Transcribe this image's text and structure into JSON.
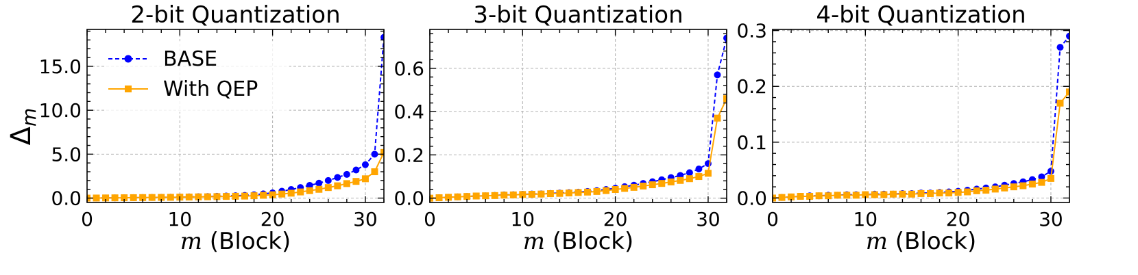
{
  "legend": {
    "location": "upper-left",
    "entries": [
      {
        "label": "BASE",
        "color": "#0000ff",
        "marker": "circle",
        "linestyle": "dashed"
      },
      {
        "label": "With QEP",
        "color": "#ffa500",
        "marker": "square",
        "linestyle": "solid"
      }
    ]
  },
  "y_label": {
    "symbol": "Δ",
    "subscript": "m"
  },
  "chart_data": [
    {
      "type": "line",
      "title": "2-bit Quantization",
      "xlabel_var": "m",
      "xlabel_rest": " (Block)",
      "x": [
        0,
        1,
        2,
        3,
        4,
        5,
        6,
        7,
        8,
        9,
        10,
        11,
        12,
        13,
        14,
        15,
        16,
        17,
        18,
        19,
        20,
        21,
        22,
        23,
        24,
        25,
        26,
        27,
        28,
        29,
        30,
        31,
        32
      ],
      "xlim": [
        0,
        32
      ],
      "ylim": [
        -0.5,
        19.2
      ],
      "xticks": [
        0,
        10,
        20,
        30
      ],
      "yticks": [
        0,
        5,
        10,
        15
      ],
      "ytick_labels": [
        "0.0",
        "5.0",
        "10.0",
        "15.0"
      ],
      "grid": true,
      "series": [
        {
          "name": "BASE",
          "values": [
            0.0,
            0.01,
            0.02,
            0.03,
            0.04,
            0.05,
            0.06,
            0.07,
            0.09,
            0.1,
            0.12,
            0.14,
            0.16,
            0.18,
            0.21,
            0.24,
            0.27,
            0.31,
            0.38,
            0.48,
            0.6,
            0.78,
            0.98,
            1.2,
            1.45,
            1.7,
            2.0,
            2.35,
            2.7,
            3.2,
            3.8,
            5.0,
            18.3
          ]
        },
        {
          "name": "With QEP",
          "values": [
            0.0,
            0.01,
            0.02,
            0.03,
            0.04,
            0.05,
            0.06,
            0.07,
            0.08,
            0.09,
            0.11,
            0.12,
            0.14,
            0.15,
            0.17,
            0.19,
            0.21,
            0.23,
            0.27,
            0.32,
            0.38,
            0.46,
            0.56,
            0.7,
            0.85,
            1.0,
            1.2,
            1.4,
            1.65,
            1.9,
            2.2,
            3.0,
            5.2
          ]
        }
      ]
    },
    {
      "type": "line",
      "title": "3-bit Quantization",
      "xlabel_var": "m",
      "xlabel_rest": " (Block)",
      "x": [
        0,
        1,
        2,
        3,
        4,
        5,
        6,
        7,
        8,
        9,
        10,
        11,
        12,
        13,
        14,
        15,
        16,
        17,
        18,
        19,
        20,
        21,
        22,
        23,
        24,
        25,
        26,
        27,
        28,
        29,
        30,
        31,
        32
      ],
      "xlim": [
        0,
        32
      ],
      "ylim": [
        -0.02,
        0.78
      ],
      "xticks": [
        0,
        10,
        20,
        30
      ],
      "yticks": [
        0,
        0.2,
        0.4,
        0.6
      ],
      "ytick_labels": [
        "0.0",
        "0.2",
        "0.4",
        "0.6"
      ],
      "grid": true,
      "series": [
        {
          "name": "BASE",
          "values": [
            0.0,
            0.002,
            0.004,
            0.006,
            0.008,
            0.01,
            0.011,
            0.013,
            0.015,
            0.016,
            0.018,
            0.019,
            0.02,
            0.022,
            0.024,
            0.026,
            0.028,
            0.031,
            0.035,
            0.04,
            0.046,
            0.053,
            0.06,
            0.068,
            0.076,
            0.085,
            0.095,
            0.105,
            0.118,
            0.135,
            0.16,
            0.57,
            0.74
          ]
        },
        {
          "name": "With QEP",
          "values": [
            0.0,
            0.002,
            0.004,
            0.006,
            0.008,
            0.01,
            0.011,
            0.012,
            0.014,
            0.015,
            0.017,
            0.018,
            0.019,
            0.021,
            0.022,
            0.024,
            0.026,
            0.028,
            0.031,
            0.035,
            0.04,
            0.045,
            0.05,
            0.056,
            0.062,
            0.068,
            0.075,
            0.082,
            0.09,
            0.1,
            0.115,
            0.37,
            0.46
          ]
        }
      ]
    },
    {
      "type": "line",
      "title": "4-bit Quantization",
      "xlabel_var": "m",
      "xlabel_rest": " (Block)",
      "x": [
        0,
        1,
        2,
        3,
        4,
        5,
        6,
        7,
        8,
        9,
        10,
        11,
        12,
        13,
        14,
        15,
        16,
        17,
        18,
        19,
        20,
        21,
        22,
        23,
        24,
        25,
        26,
        27,
        28,
        29,
        30,
        31,
        32
      ],
      "xlim": [
        0,
        32
      ],
      "ylim": [
        -0.008,
        0.302
      ],
      "xticks": [
        0,
        10,
        20,
        30
      ],
      "yticks": [
        0,
        0.1,
        0.2,
        0.3
      ],
      "ytick_labels": [
        "0.0",
        "0.1",
        "0.2",
        "0.3"
      ],
      "grid": true,
      "series": [
        {
          "name": "BASE",
          "values": [
            0.0,
            0.001,
            0.002,
            0.003,
            0.004,
            0.004,
            0.005,
            0.005,
            0.006,
            0.006,
            0.006,
            0.007,
            0.007,
            0.007,
            0.008,
            0.008,
            0.009,
            0.009,
            0.01,
            0.011,
            0.012,
            0.014,
            0.016,
            0.018,
            0.02,
            0.023,
            0.026,
            0.029,
            0.033,
            0.038,
            0.048,
            0.27,
            0.29
          ]
        },
        {
          "name": "With QEP",
          "values": [
            0.0,
            0.001,
            0.002,
            0.003,
            0.003,
            0.004,
            0.004,
            0.005,
            0.005,
            0.005,
            0.006,
            0.006,
            0.006,
            0.007,
            0.007,
            0.007,
            0.008,
            0.008,
            0.009,
            0.009,
            0.01,
            0.011,
            0.013,
            0.014,
            0.016,
            0.018,
            0.02,
            0.022,
            0.025,
            0.028,
            0.035,
            0.17,
            0.19
          ]
        }
      ]
    }
  ]
}
